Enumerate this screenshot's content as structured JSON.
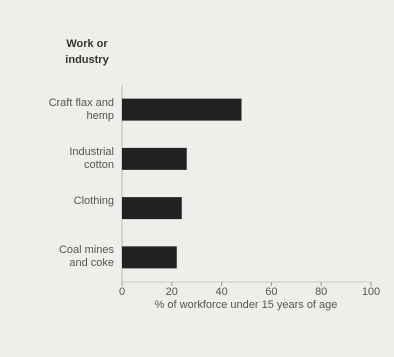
{
  "chart_data": {
    "type": "bar",
    "orientation": "horizontal",
    "y_axis_title": "Work or industry",
    "x_axis_title": "% of workforce under 15 years of age",
    "categories": [
      "Craft flax and hemp",
      "Industrial cotton",
      "Clothing",
      "Coal mines and coke"
    ],
    "values": [
      48,
      26,
      24,
      22
    ],
    "color": "#222222",
    "xlim": [
      0,
      100
    ],
    "xticks": [
      0,
      20,
      40,
      60,
      80,
      100
    ],
    "grid": false
  }
}
